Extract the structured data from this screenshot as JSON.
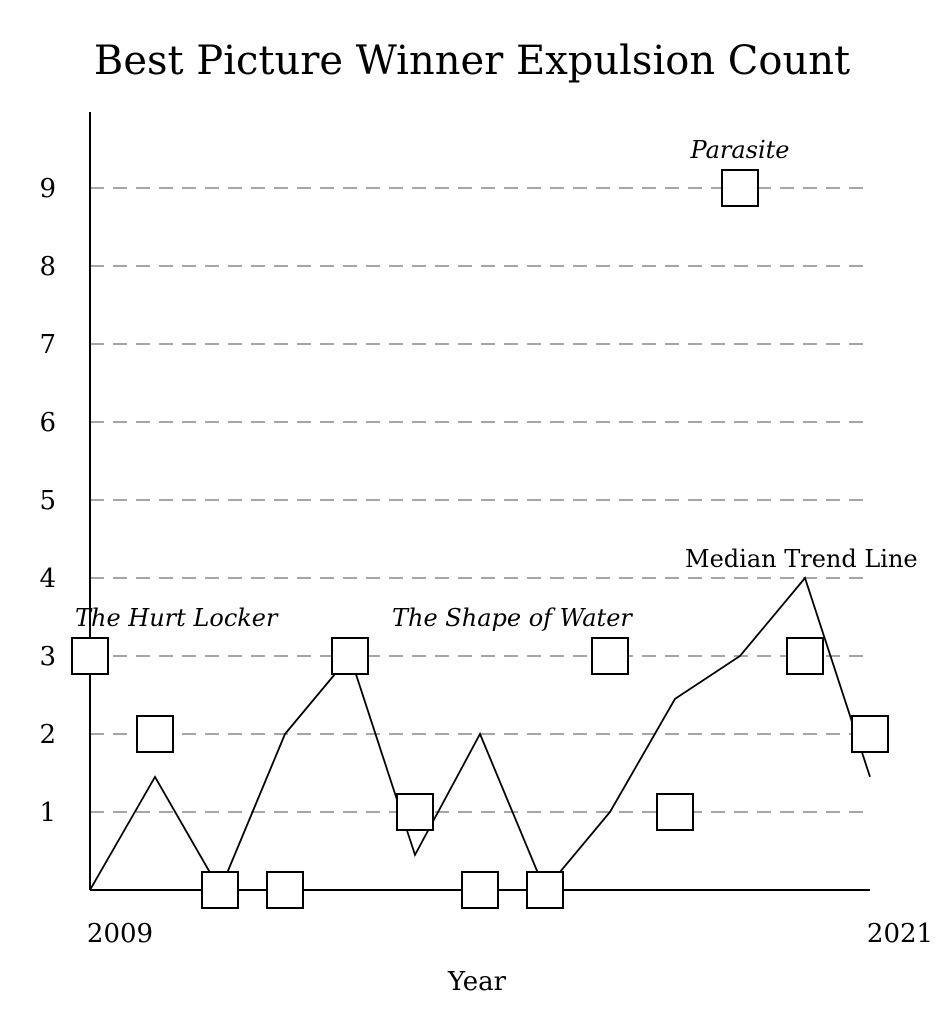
{
  "chart_data": {
    "type": "scatter",
    "title": "Best Picture Winner Expulsion Count",
    "xlabel": "Year",
    "ylabel": "",
    "xlim": [
      2009,
      2021
    ],
    "ylim": [
      0,
      10
    ],
    "y_ticks": [
      1,
      2,
      3,
      4,
      5,
      6,
      7,
      8,
      9
    ],
    "x_tick_labels": [
      {
        "x": 2009,
        "label": "2009"
      },
      {
        "x": 2021,
        "label": "2021"
      }
    ],
    "grid": "horizontal-dashed",
    "series": [
      {
        "marker": "square",
        "color": "#000000",
        "x": [
          2009,
          2010,
          2011,
          2012,
          2013,
          2014,
          2015,
          2016,
          2017,
          2018,
          2019,
          2020,
          2021
        ],
        "values": [
          3,
          2,
          0,
          0,
          3,
          1,
          0,
          0,
          3,
          1,
          9,
          3,
          2
        ]
      },
      {
        "name": "Median Trend Line",
        "type": "line",
        "color": "#000000",
        "x": [
          2009,
          2010,
          2011,
          2012,
          2013,
          2014,
          2015,
          2016,
          2017,
          2018,
          2019,
          2020,
          2021
        ],
        "values": [
          0,
          1.45,
          0,
          2,
          3,
          0.45,
          2,
          0,
          1,
          2.45,
          3,
          4,
          1.45
        ]
      }
    ],
    "annotations": [
      {
        "text": "The Hurt Locker",
        "x": 2009,
        "y": 3,
        "style": "italic"
      },
      {
        "text": "The Shape of Water",
        "x": 2015.5,
        "y": 3,
        "style": "italic"
      },
      {
        "text": "Parasite",
        "x": 2019,
        "y": 9,
        "style": "italic"
      },
      {
        "text": "Median Trend Line",
        "x": 2020,
        "y": 4,
        "style": "normal"
      }
    ]
  }
}
